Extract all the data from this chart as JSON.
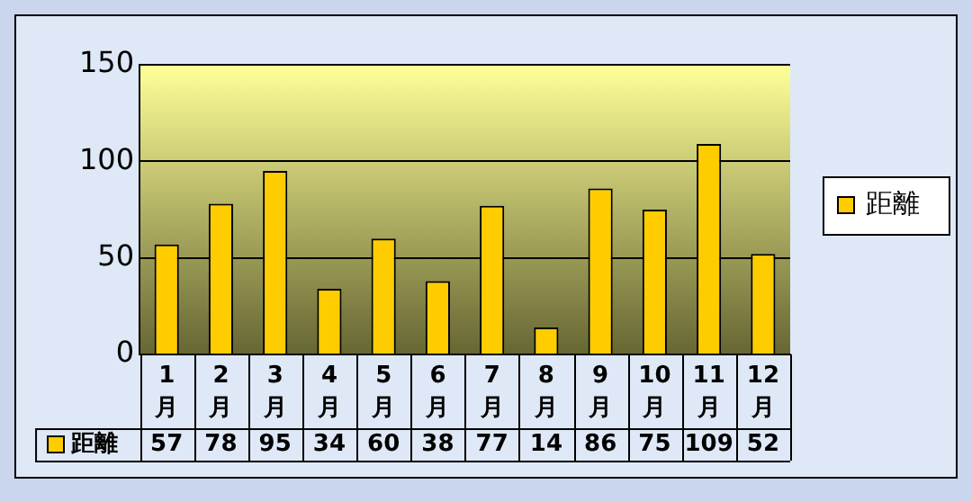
{
  "chart_data": {
    "type": "bar",
    "categories": [
      "1月",
      "2月",
      "3月",
      "4月",
      "5月",
      "6月",
      "7月",
      "8月",
      "9月",
      "10月",
      "11月",
      "12月"
    ],
    "series": [
      {
        "name": "距離",
        "color": "#ffcc00",
        "values": [
          57,
          78,
          95,
          34,
          60,
          38,
          77,
          14,
          86,
          75,
          109,
          52
        ]
      }
    ],
    "ylim": [
      0,
      150
    ],
    "yticks": [
      0,
      50,
      100,
      150
    ],
    "grid": "y",
    "legend": "right",
    "data_labels": true
  }
}
